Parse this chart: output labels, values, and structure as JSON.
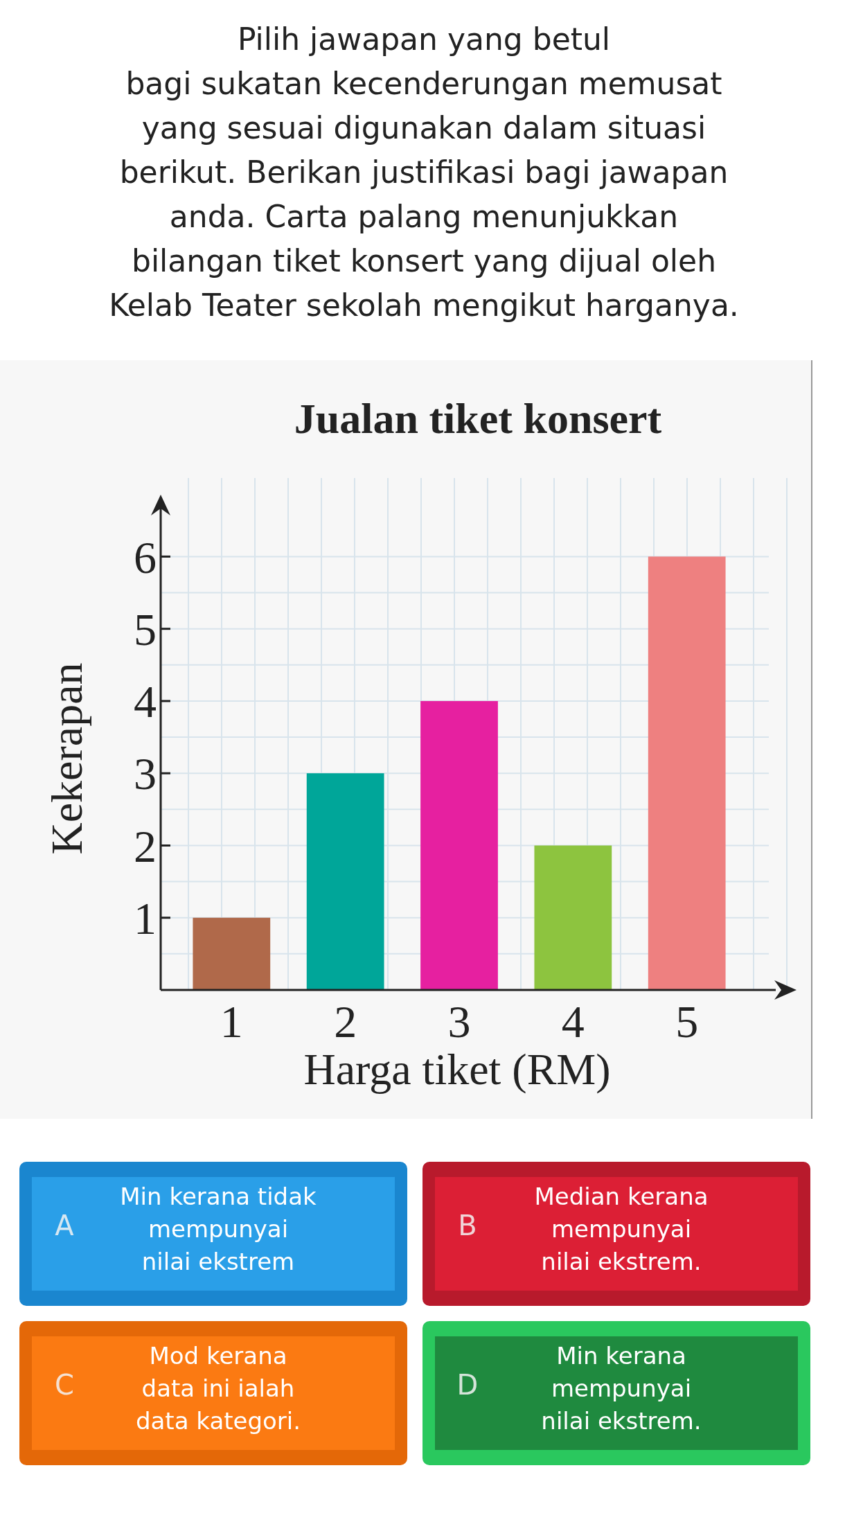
{
  "chart_data": {
    "type": "bar",
    "title": "Jualan tiket konsert",
    "xlabel": "Harga tiket (RM)",
    "ylabel": "Kekerapan",
    "categories": [
      "1",
      "2",
      "3",
      "4",
      "5"
    ],
    "values": [
      1,
      3,
      4,
      2,
      6
    ],
    "colors": [
      "#b0694a",
      "#00a699",
      "#e620a0",
      "#8dc43f",
      "#ee8080"
    ],
    "ylim": [
      0,
      6.8
    ],
    "yticks": [
      1,
      2,
      3,
      4,
      5,
      6
    ],
    "grid": true,
    "annotations": [
      "Pilih jawapan yang betul\nbagi sukatan kecenderungan memusat\nyang sesuai digunakan dalam situasi\nberikut. Berikan justifikasi bagi jawapan\nanda. Carta palang menunjukkan\nbilangan tiket konsert yang dijual oleh\nKelab Teater sekolah mengikut harganya.",
      "A",
      "Min kerana tidak\nmempunyai\nnilai ekstrem",
      "B",
      "Median kerana\nmempunyai\nnilai ekstrem.",
      "C",
      "Mod kerana\ndata ini ialah\ndata kategori.",
      "D",
      "Min kerana\nmempunyai\nnilai ekstrem."
    ]
  }
}
